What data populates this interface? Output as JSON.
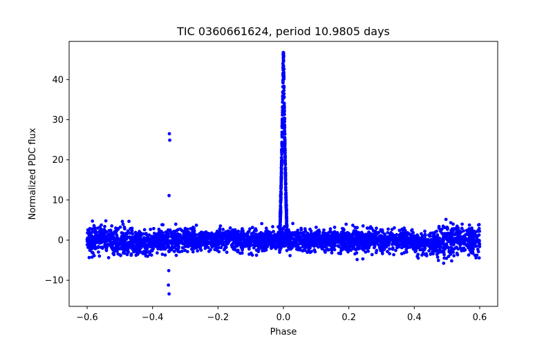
{
  "chart_data": {
    "type": "scatter",
    "title": "TIC 0360661624, period 10.9805 days",
    "xlabel": "Phase",
    "ylabel": "Normalized PDC flux",
    "xlim": [
      -0.655,
      0.655
    ],
    "ylim": [
      -16.5,
      49.5
    ],
    "xticks": [
      -0.6,
      -0.4,
      -0.2,
      0.0,
      0.2,
      0.4,
      0.6
    ],
    "xtick_labels": [
      "−0.6",
      "−0.4",
      "−0.2",
      "0.0",
      "0.2",
      "0.4",
      "0.6"
    ],
    "yticks": [
      -10,
      0,
      10,
      20,
      30,
      40
    ],
    "ytick_labels": [
      "−10",
      "0",
      "10",
      "20",
      "30",
      "40"
    ],
    "grid": false,
    "marker_color": "#0000ff",
    "series": [
      {
        "name": "phased light curve",
        "baseline_range": [
          -0.6,
          0.6
        ],
        "baseline_noise_range": [
          -6,
          6
        ],
        "peak": {
          "phase": 0.0,
          "max_flux": 46.7,
          "width": 0.012
        },
        "points": [
          {
            "x": -0.3485,
            "y": 26.5
          },
          {
            "x": -0.3475,
            "y": 24.9
          },
          {
            "x": -0.3495,
            "y": 11.1
          },
          {
            "x": -0.3505,
            "y": -7.6
          },
          {
            "x": -0.3515,
            "y": -11.2
          },
          {
            "x": -0.3495,
            "y": -13.4
          },
          {
            "x": 0.0002,
            "y": 46.7
          },
          {
            "x": -0.0008,
            "y": 46.2
          },
          {
            "x": 0.001,
            "y": 45.8
          },
          {
            "x": -0.0015,
            "y": 44.0
          },
          {
            "x": 0.002,
            "y": 42.6
          }
        ]
      }
    ]
  }
}
